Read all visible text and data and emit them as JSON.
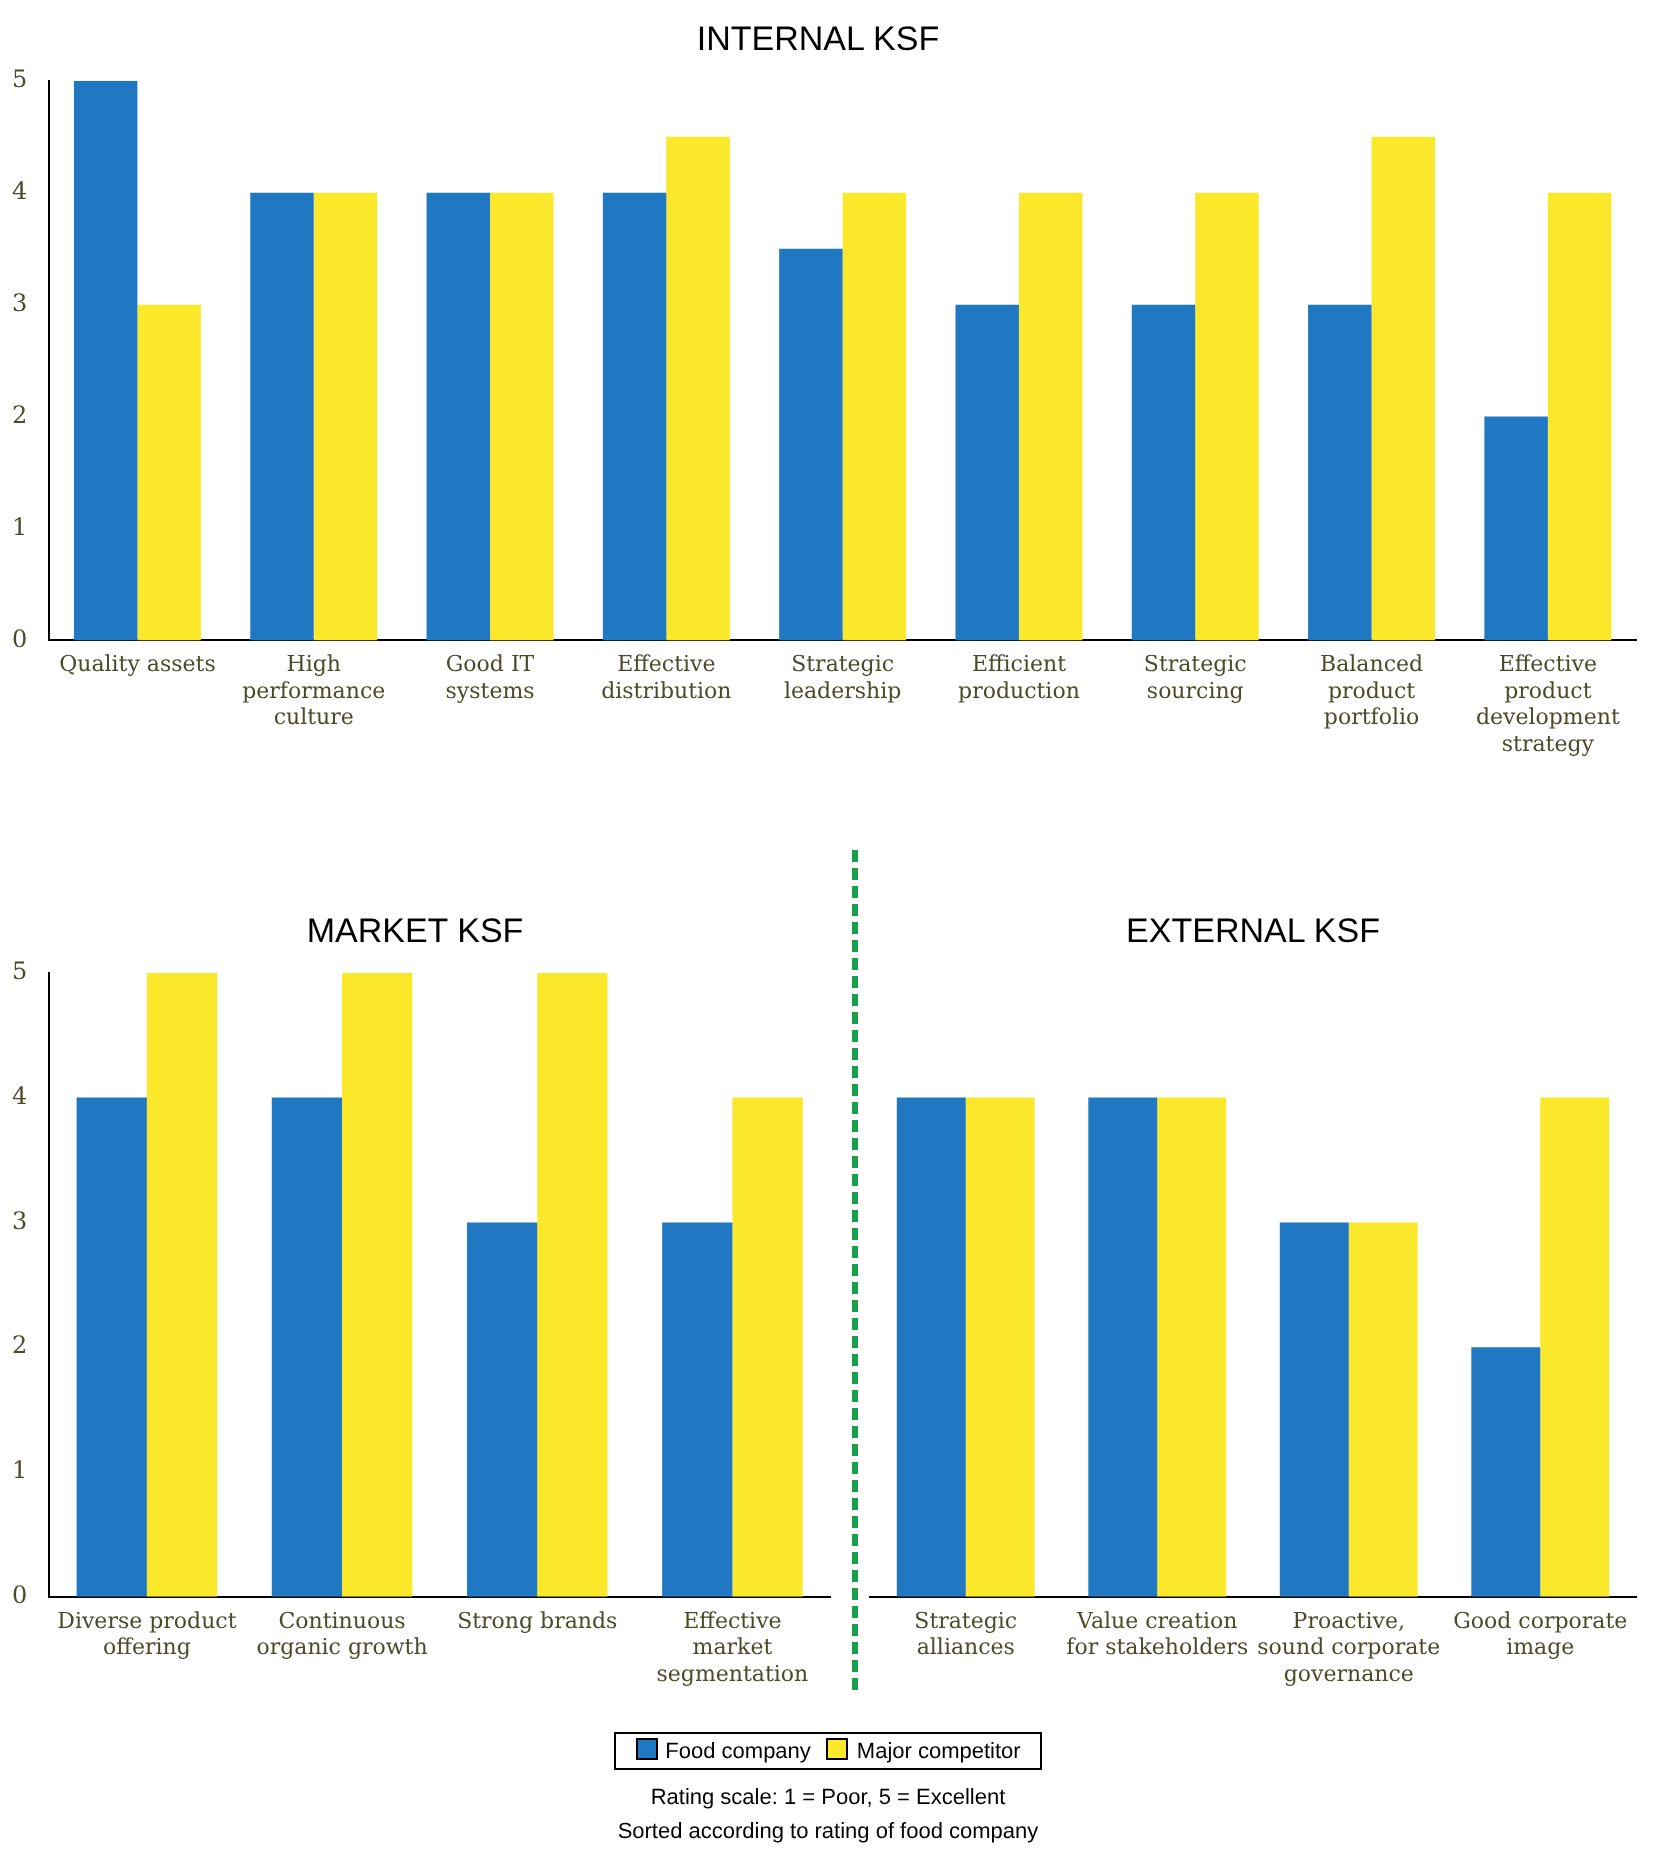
{
  "chart_data": [
    {
      "type": "bar",
      "title": "INTERNAL KSF",
      "categories": [
        "Quality assets",
        "High performance culture",
        "Good IT systems",
        "Effective distribution",
        "Strategic leadership",
        "Efficient production",
        "Strategic sourcing",
        "Balanced product portfolio",
        "Effective product development strategy"
      ],
      "series": [
        {
          "color": "#1f78c1",
          "values": [
            5,
            4,
            4,
            4,
            3.5,
            3,
            3,
            3,
            2
          ]
        },
        {
          "color": "#fbe82a",
          "values": [
            3,
            4,
            4,
            4.5,
            4,
            4,
            4,
            4.5,
            4
          ]
        }
      ],
      "ylim": [
        0,
        5
      ],
      "yticks": [
        0,
        1,
        2,
        3,
        4,
        5
      ],
      "legend": false
    },
    {
      "type": "bar",
      "title": "MARKET KSF",
      "categories": [
        "Diverse product offering",
        "Continuous organic growth",
        "Strong brands",
        "Effective market segmentation"
      ],
      "series": [
        {
          "color": "#1f78c1",
          "values": [
            4,
            4,
            3,
            3
          ]
        },
        {
          "color": "#fbe82a",
          "values": [
            5,
            5,
            5,
            4
          ]
        }
      ],
      "ylim": [
        0,
        5
      ],
      "yticks": [
        0,
        1,
        2,
        3,
        4,
        5
      ],
      "legend": false
    },
    {
      "type": "bar",
      "title": "EXTERNAL KSF",
      "categories": [
        "Strategic alliances",
        "Value creation for stakeholders",
        "Proactive, sound corporate governance",
        "Good corporate image"
      ],
      "series": [
        {
          "name": "Food company",
          "color": "#1f78c1",
          "values": [
            4,
            4,
            3,
            2
          ]
        },
        {
          "name": "Major competitor",
          "color": "#fbe82a",
          "values": [
            4,
            4,
            3,
            4
          ]
        }
      ],
      "ylim": [
        0,
        5
      ],
      "yticks": [
        0,
        1,
        2,
        3,
        4,
        5
      ],
      "tick_labels": "x",
      "legend": "bottom",
      "annotations": [
        "Rating scale:  1 = Poor, 5 = Excellent",
        "Sorted according to rating of food company"
      ]
    }
  ]
}
